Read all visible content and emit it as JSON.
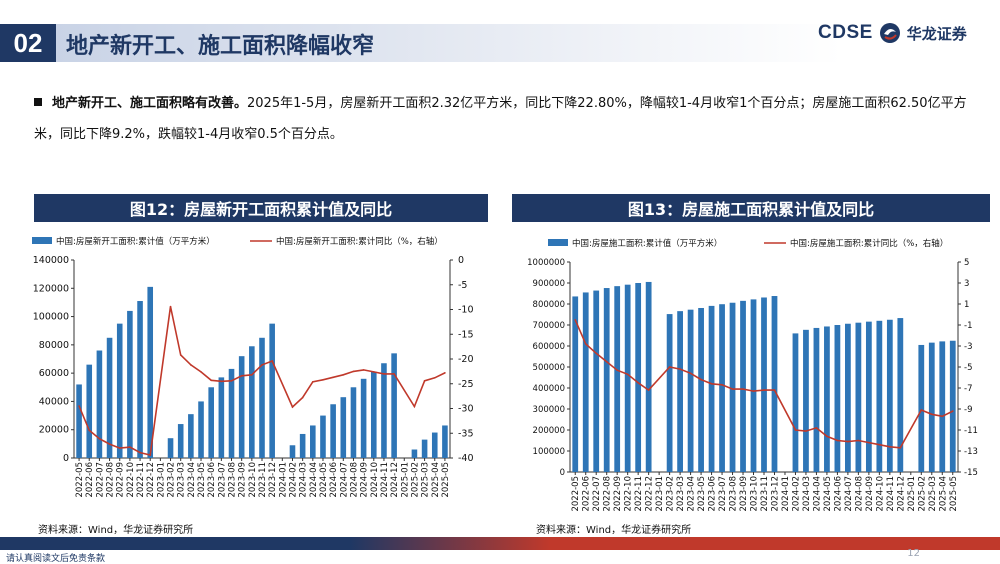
{
  "header": {
    "section_number": "02",
    "title": "地产新开工、施工面积降幅收窄",
    "logo_text": "CDSE",
    "logo_cn": "华龙证券"
  },
  "bullet": {
    "lead": "地产新开工、施工面积略有改善。",
    "body": "2025年1-5月，房屋新开工面积2.32亿平方米，同比下降22.80%，降幅较1-4月收窄1个百分点；房屋施工面积62.50亿平方米，同比下降9.2%，跌幅较1-4月收窄0.5个百分点。"
  },
  "charts": [
    {
      "heading": "图12：房屋新开工面积累计值及同比",
      "source": "资料来源：Wind，华龙证券研究所"
    },
    {
      "heading": "图13：房屋施工面积累计值及同比",
      "source": "资料来源：Wind，华龙证券研究所"
    }
  ],
  "footer": {
    "disclaimer": "请认真阅读文后免责条款",
    "page": "12"
  },
  "colors": {
    "navy": "#1f3864",
    "bar": "#2e75b6",
    "line": "#c0392b"
  },
  "chart_data": [
    {
      "type": "bar",
      "title": "图12：房屋新开工面积累计值及同比",
      "categories": [
        "2022-05",
        "2022-06",
        "2022-07",
        "2022-08",
        "2022-09",
        "2022-10",
        "2022-11",
        "2022-12",
        "2023-01",
        "2023-02",
        "2023-03",
        "2023-04",
        "2023-05",
        "2023-06",
        "2023-07",
        "2023-08",
        "2023-09",
        "2023-10",
        "2023-11",
        "2023-12",
        "2024-01",
        "2024-02",
        "2024-03",
        "2024-04",
        "2024-05",
        "2024-06",
        "2024-07",
        "2024-08",
        "2024-09",
        "2024-10",
        "2024-11",
        "2024-12",
        "2025-01",
        "2025-02",
        "2025-03",
        "2025-04",
        "2025-05"
      ],
      "series": [
        {
          "name": "中国:房屋新开工面积:累计值（万平方米）",
          "axis": "left",
          "values": [
            52000,
            66000,
            76000,
            85000,
            95000,
            104000,
            111000,
            121000,
            null,
            14000,
            24000,
            31000,
            40000,
            50000,
            57000,
            63000,
            72000,
            79000,
            85000,
            95000,
            null,
            9000,
            17000,
            23000,
            30000,
            38000,
            43000,
            50000,
            56000,
            61000,
            67000,
            74000,
            null,
            6000,
            13000,
            18000,
            23000
          ]
        },
        {
          "name": "中国:房屋新开工面积:累计同比（%，右轴）",
          "axis": "right",
          "values": [
            -29.5,
            -34.4,
            -36.1,
            -37.2,
            -38.0,
            -37.8,
            -38.9,
            -39.4,
            null,
            -9.4,
            -19.2,
            -21.2,
            -22.6,
            -24.3,
            -24.5,
            -24.4,
            -23.4,
            -23.2,
            -21.2,
            -20.4,
            null,
            -29.7,
            -27.8,
            -24.6,
            -24.2,
            -23.7,
            -23.2,
            -22.5,
            -22.2,
            -22.6,
            -23.0,
            -23.0,
            null,
            -29.6,
            -24.4,
            -23.8,
            -22.8
          ]
        }
      ],
      "ylim": [
        0,
        140000
      ],
      "yticks": [
        0,
        20000,
        40000,
        60000,
        80000,
        100000,
        120000,
        140000
      ],
      "y2lim": [
        -40,
        0
      ],
      "y2ticks": [
        -40,
        -35,
        -30,
        -25,
        -20,
        -15,
        -10,
        -5,
        0
      ]
    },
    {
      "type": "bar",
      "title": "图13：房屋施工面积累计值及同比",
      "categories": [
        "2022-05",
        "2022-06",
        "2022-07",
        "2022-08",
        "2022-09",
        "2022-10",
        "2022-11",
        "2022-12",
        "2023-01",
        "2023-02",
        "2023-03",
        "2023-04",
        "2023-05",
        "2023-06",
        "2023-07",
        "2023-08",
        "2023-09",
        "2023-10",
        "2023-11",
        "2023-12",
        "2024-01",
        "2024-02",
        "2024-03",
        "2024-04",
        "2024-05",
        "2024-06",
        "2024-07",
        "2024-08",
        "2024-09",
        "2024-10",
        "2024-11",
        "2024-12",
        "2025-01",
        "2025-02",
        "2025-03",
        "2025-04",
        "2025-05"
      ],
      "series": [
        {
          "name": "中国:房屋施工面积:累计值（万平方米）",
          "axis": "left",
          "values": [
            836000,
            855000,
            864000,
            876000,
            885000,
            892000,
            900000,
            905000,
            null,
            752000,
            766000,
            773000,
            781000,
            791000,
            799000,
            806000,
            815000,
            822000,
            831000,
            838000,
            null,
            660000,
            677000,
            686000,
            693000,
            700000,
            706000,
            711000,
            716000,
            720000,
            725000,
            733000,
            null,
            605000,
            616000,
            622000,
            625000
          ]
        },
        {
          "name": "中国:房屋施工面积:累计同比（%，右轴）",
          "axis": "right",
          "values": [
            -0.5,
            -2.8,
            -3.7,
            -4.5,
            -5.3,
            -5.7,
            -6.5,
            -7.2,
            null,
            -5.0,
            -5.2,
            -5.6,
            -6.2,
            -6.6,
            -6.7,
            -7.1,
            -7.1,
            -7.3,
            -7.2,
            -7.2,
            null,
            -11.0,
            -11.1,
            -10.8,
            -11.6,
            -12.0,
            -12.1,
            -12.0,
            -12.2,
            -12.4,
            -12.6,
            -12.7,
            null,
            -9.1,
            -9.5,
            -9.7,
            -9.2
          ]
        }
      ],
      "ylim": [
        0,
        1000000
      ],
      "yticks": [
        0,
        100000,
        200000,
        300000,
        400000,
        500000,
        600000,
        700000,
        800000,
        900000,
        1000000
      ],
      "y2lim": [
        -15,
        5
      ],
      "y2ticks": [
        -15,
        -13,
        -11,
        -9,
        -7,
        -5,
        -3,
        -1,
        1,
        3,
        5
      ]
    }
  ]
}
